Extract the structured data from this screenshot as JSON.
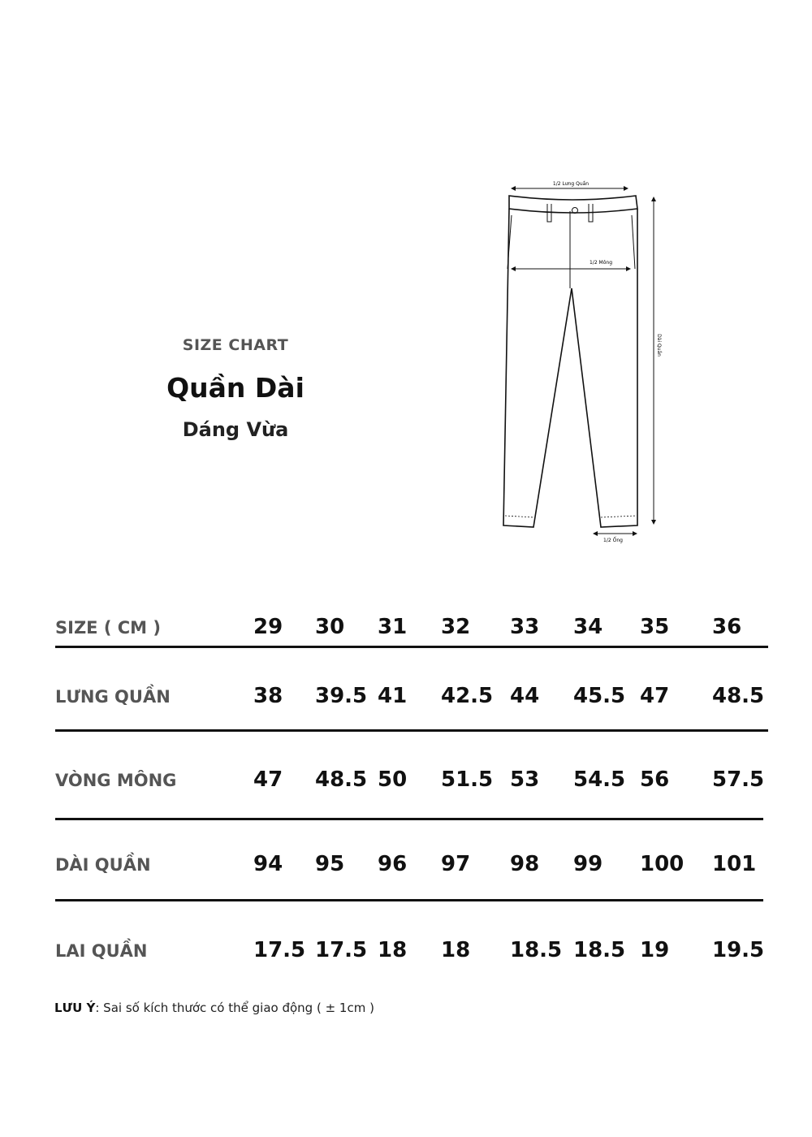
{
  "header": {
    "label": "SIZE CHART",
    "title": "Quần Dài",
    "fit": "Dáng Vừa"
  },
  "diagram": {
    "waist_label": "1/2 Lưng Quần",
    "hip_label": "1/2 Mông",
    "length_label": "Dài Quần",
    "hem_label": "1/2 Ống"
  },
  "table": {
    "header_label": "SIZE ( CM )",
    "sizes": [
      "29",
      "30",
      "31",
      "32",
      "33",
      "34",
      "35",
      "36"
    ],
    "rows": [
      {
        "label": "LƯNG QUẦN",
        "values": [
          "38",
          "39.5",
          "41",
          "42.5",
          "44",
          "45.5",
          "47",
          "48.5"
        ]
      },
      {
        "label": "VÒNG MÔNG",
        "values": [
          "47",
          "48.5",
          "50",
          "51.5",
          "53",
          "54.5",
          "56",
          "57.5"
        ]
      },
      {
        "label": "DÀI QUẦN",
        "values": [
          "94",
          "95",
          "96",
          "97",
          "98",
          "99",
          "100",
          "101"
        ]
      },
      {
        "label": "LAI QUẦN",
        "values": [
          "17.5",
          "17.5",
          "18",
          "18",
          "18.5",
          "18.5",
          "19",
          "19.5"
        ]
      }
    ]
  },
  "note": {
    "label": "LƯU Ý",
    "text": ": Sai số kích thước có thể giao động ( ± 1cm )"
  }
}
